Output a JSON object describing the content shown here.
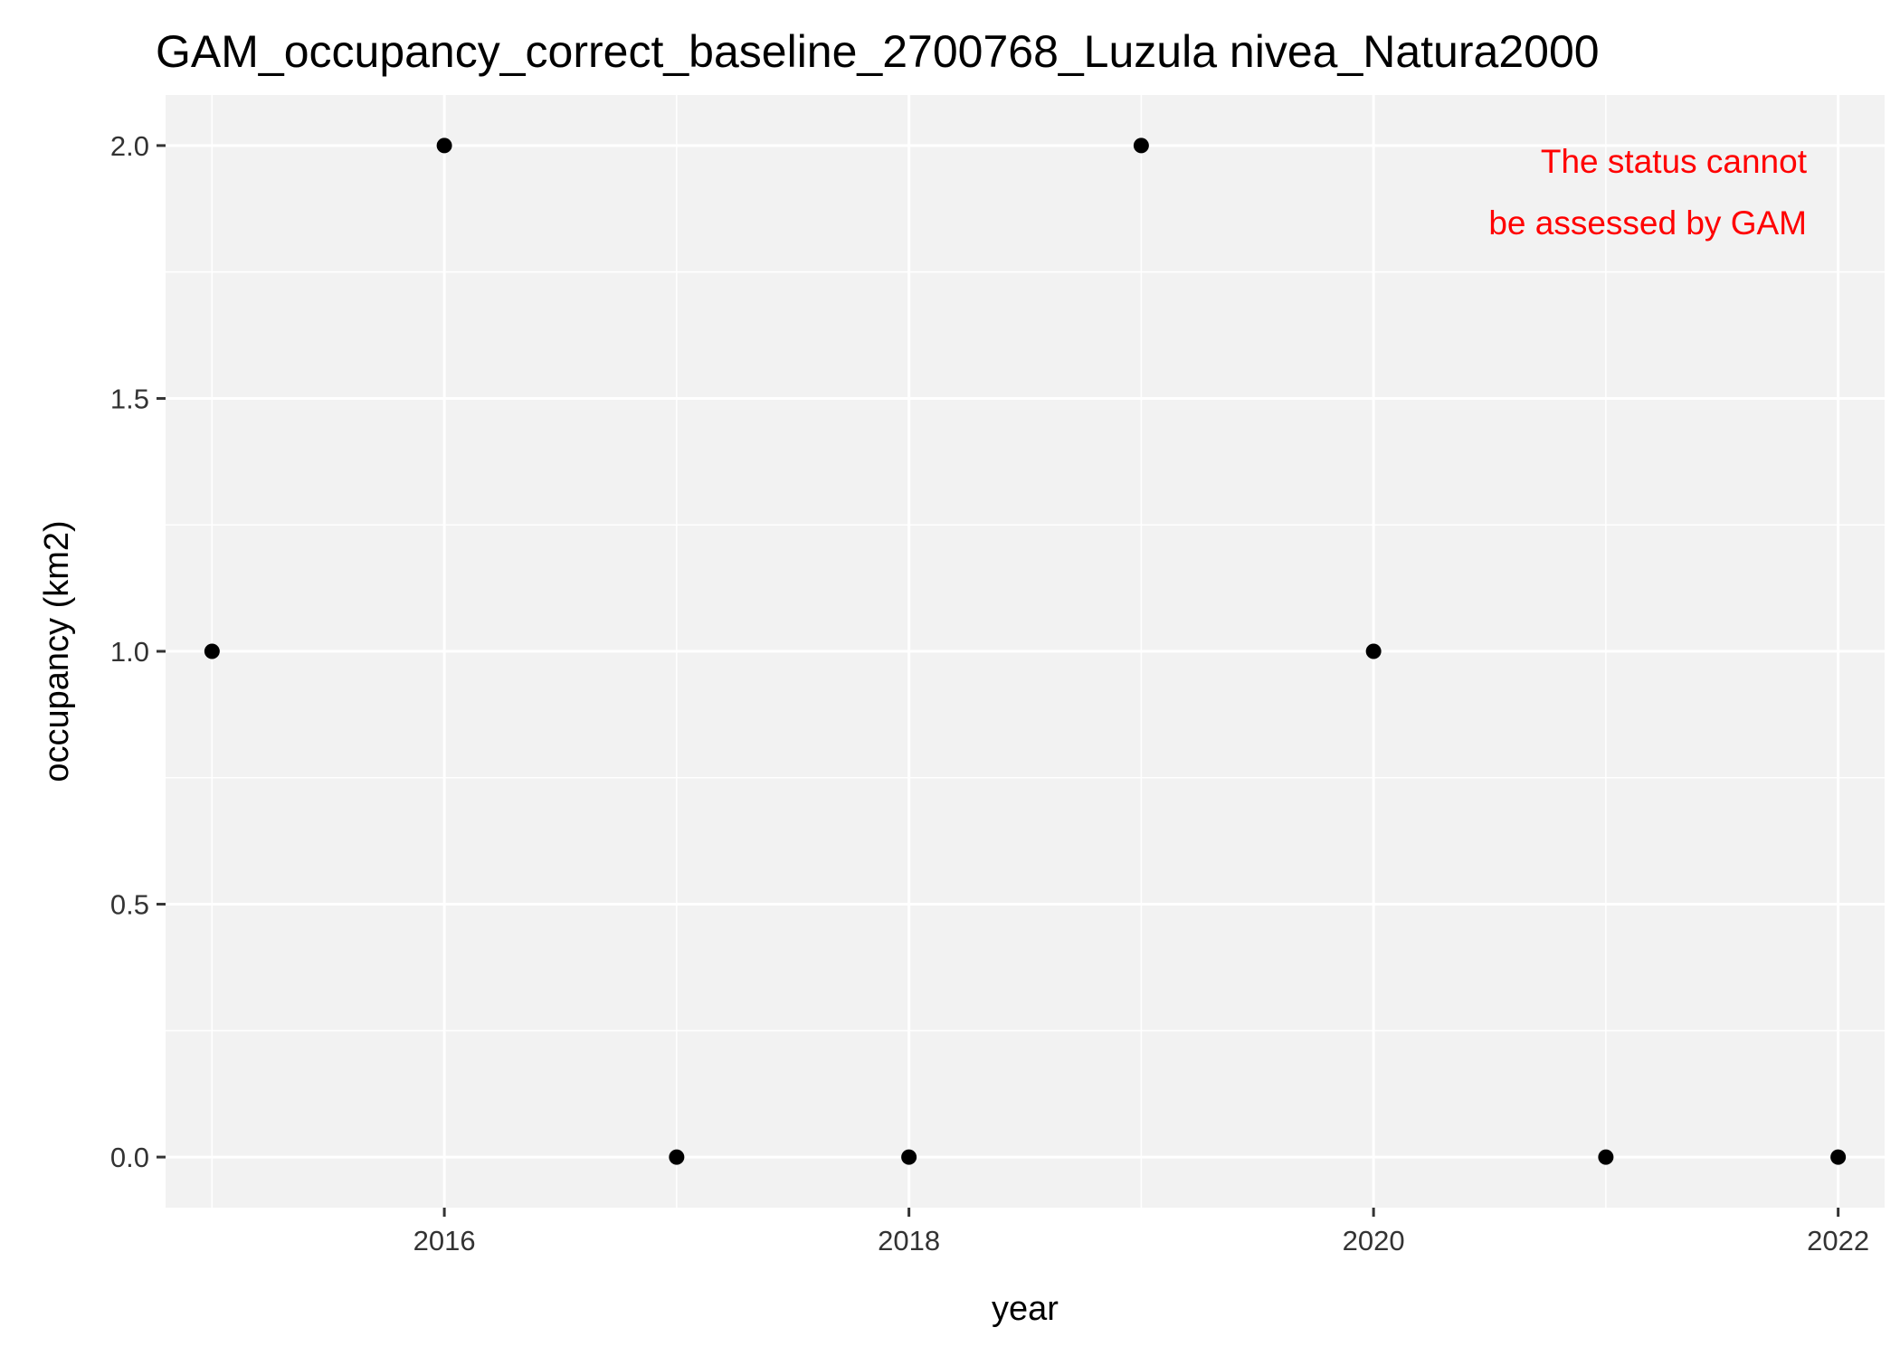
{
  "chart_data": {
    "type": "scatter",
    "title": "GAM_occupancy_correct_baseline_2700768_Luzula nivea_Natura2000",
    "xlabel": "year",
    "ylabel": "occupancy (km2)",
    "xlim": [
      2014.8,
      2022.2
    ],
    "ylim": [
      -0.1,
      2.1
    ],
    "x_ticks": [
      2016,
      2018,
      2020,
      2022
    ],
    "x_tick_labels": [
      "2016",
      "2018",
      "2020",
      "2022"
    ],
    "y_ticks": [
      0.0,
      0.5,
      1.0,
      1.5,
      2.0
    ],
    "y_tick_labels": [
      "0.0",
      "0.5",
      "1.0",
      "1.5",
      "2.0"
    ],
    "grid": true,
    "points": [
      {
        "x": 2015,
        "y": 1
      },
      {
        "x": 2016,
        "y": 2
      },
      {
        "x": 2017,
        "y": 0
      },
      {
        "x": 2018,
        "y": 0
      },
      {
        "x": 2019,
        "y": 2
      },
      {
        "x": 2020,
        "y": 1
      },
      {
        "x": 2021,
        "y": 0
      },
      {
        "x": 2022,
        "y": 0
      }
    ],
    "annotation": {
      "lines": [
        "The status cannot",
        "be assessed by GAM"
      ],
      "color": "#ff0000"
    },
    "colors": {
      "panel": "#f2f2f2",
      "grid": "#ffffff",
      "point": "#000000"
    }
  }
}
